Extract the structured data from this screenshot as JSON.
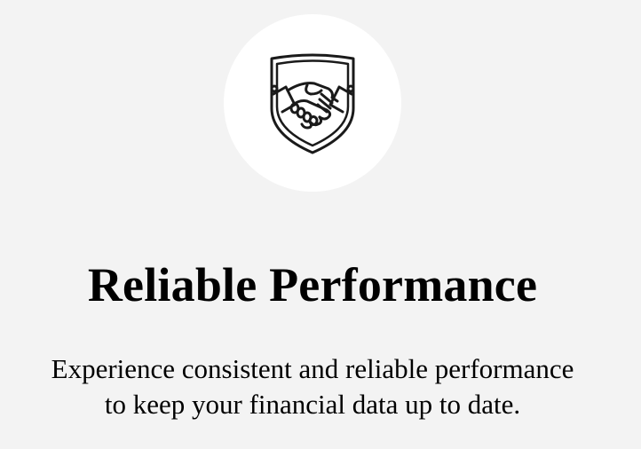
{
  "feature": {
    "icon": "handshake-shield-icon",
    "title": "Reliable Performance",
    "description_line_1": "Experience consistent and reliable performance",
    "description_line_2": "to keep your financial data up to date."
  },
  "colors": {
    "background": "#f3f3f3",
    "circle": "#ffffff",
    "text": "#000000",
    "icon_stroke": "#1a1a1a"
  }
}
